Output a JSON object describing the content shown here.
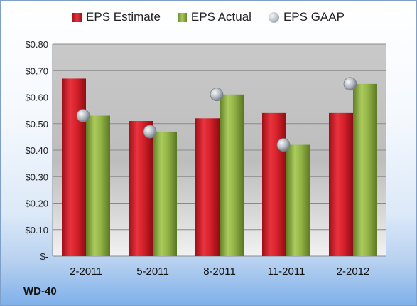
{
  "company": "WD-40",
  "chart_data": {
    "type": "bar",
    "title": "",
    "xlabel": "",
    "ylabel": "",
    "categories": [
      "2-2011",
      "5-2011",
      "8-2011",
      "11-2011",
      "2-2012"
    ],
    "series": [
      {
        "name": "EPS Estimate",
        "kind": "bar",
        "color": "#d9232d",
        "values": [
          0.67,
          0.51,
          0.52,
          0.54,
          0.54
        ]
      },
      {
        "name": "EPS Actual",
        "kind": "bar",
        "color": "#8fb044",
        "values": [
          0.53,
          0.47,
          0.61,
          0.42,
          0.65
        ]
      },
      {
        "name": "EPS GAAP",
        "kind": "scatter",
        "color": "#b0b6bd",
        "values": [
          0.53,
          0.47,
          0.61,
          0.42,
          0.65
        ]
      }
    ],
    "ylim": [
      0,
      0.8
    ],
    "yticks": [
      0,
      0.1,
      0.2,
      0.3,
      0.4,
      0.5,
      0.6,
      0.7,
      0.8
    ],
    "ytick_labels": [
      "$-",
      "$0.10",
      "$0.20",
      "$0.30",
      "$0.40",
      "$0.50",
      "$0.60",
      "$0.70",
      "$0.80"
    ],
    "grid": true,
    "legend": "top"
  }
}
